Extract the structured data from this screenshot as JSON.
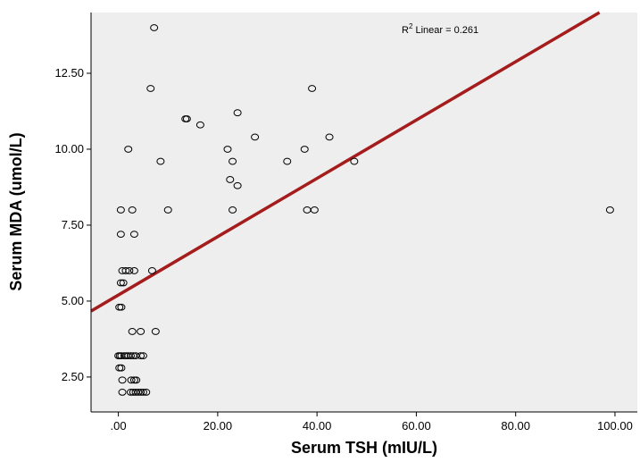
{
  "chart_data": {
    "type": "scatter",
    "xlabel": "Serum TSH (mIU/L)",
    "ylabel": "Serum  MDA (umol/L)",
    "xlim": [
      -5.5,
      104.5
    ],
    "ylim": [
      1.35,
      14.5
    ],
    "x_ticks": [
      0,
      20,
      40,
      60,
      80,
      100
    ],
    "x_tick_labels": [
      ".00",
      "20.00",
      "40.00",
      "60.00",
      "80.00",
      "100.00"
    ],
    "y_ticks": [
      2.5,
      5.0,
      7.5,
      10.0,
      12.5
    ],
    "y_tick_labels": [
      "2.50",
      "5.00",
      "7.50",
      "10.00",
      "12.50"
    ],
    "grid": false,
    "annotation": {
      "prefix": "R",
      "sup": "2",
      "text": " Linear = 0.261"
    },
    "fit_line": {
      "type": "linear",
      "intercept": 5.2,
      "slope": 0.096,
      "color": "#a51c1c"
    },
    "marker": {
      "shape": "open-circle",
      "color": "#000000"
    },
    "colors": {
      "plot_background": "#eeeeee",
      "axis": "#000000"
    },
    "points": [
      [
        7.2,
        14.0
      ],
      [
        6.5,
        12.0
      ],
      [
        39.0,
        12.0
      ],
      [
        13.5,
        11.0
      ],
      [
        13.8,
        11.0
      ],
      [
        24.0,
        11.2
      ],
      [
        16.5,
        10.8
      ],
      [
        27.5,
        10.4
      ],
      [
        42.5,
        10.4
      ],
      [
        2.0,
        10.0
      ],
      [
        22.0,
        10.0
      ],
      [
        37.5,
        10.0
      ],
      [
        8.5,
        9.6
      ],
      [
        23.0,
        9.6
      ],
      [
        34.0,
        9.6
      ],
      [
        47.5,
        9.6
      ],
      [
        22.5,
        9.0
      ],
      [
        24.0,
        8.8
      ],
      [
        0.5,
        8.0
      ],
      [
        2.8,
        8.0
      ],
      [
        10.0,
        8.0
      ],
      [
        23.0,
        8.0
      ],
      [
        38.0,
        8.0
      ],
      [
        39.5,
        8.0
      ],
      [
        99.0,
        8.0
      ],
      [
        0.5,
        7.2
      ],
      [
        3.2,
        7.2
      ],
      [
        0.8,
        6.0
      ],
      [
        1.5,
        6.0
      ],
      [
        2.2,
        6.0
      ],
      [
        3.2,
        6.0
      ],
      [
        6.8,
        6.0
      ],
      [
        0.5,
        5.6
      ],
      [
        1.0,
        5.6
      ],
      [
        0.2,
        4.8
      ],
      [
        0.6,
        4.8
      ],
      [
        2.8,
        4.0
      ],
      [
        4.5,
        4.0
      ],
      [
        7.5,
        4.0
      ],
      [
        0.0,
        3.2
      ],
      [
        0.3,
        3.2
      ],
      [
        0.6,
        3.2
      ],
      [
        1.2,
        3.2
      ],
      [
        1.6,
        3.2
      ],
      [
        2.0,
        3.2
      ],
      [
        2.5,
        3.2
      ],
      [
        3.0,
        3.2
      ],
      [
        3.5,
        3.2
      ],
      [
        4.5,
        3.2
      ],
      [
        5.0,
        3.2
      ],
      [
        0.2,
        2.8
      ],
      [
        0.6,
        2.8
      ],
      [
        2.6,
        2.4
      ],
      [
        3.2,
        2.4
      ],
      [
        3.6,
        2.4
      ],
      [
        0.8,
        2.4
      ],
      [
        0.8,
        2.0
      ],
      [
        2.5,
        2.0
      ],
      [
        3.0,
        2.0
      ],
      [
        3.5,
        2.0
      ],
      [
        4.0,
        2.0
      ],
      [
        4.5,
        2.0
      ],
      [
        5.0,
        2.0
      ],
      [
        5.6,
        2.0
      ]
    ]
  }
}
